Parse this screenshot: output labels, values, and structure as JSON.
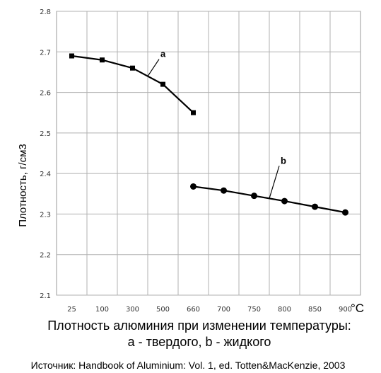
{
  "chart_data": {
    "type": "line",
    "categories": [
      "25",
      "100",
      "300",
      "500",
      "660",
      "700",
      "750",
      "800",
      "850",
      "900"
    ],
    "ylabel": "Плотность, г/см3",
    "x_unit": "°C",
    "ylim": [
      2.1,
      2.8
    ],
    "yticks": [
      "2.1",
      "2.2",
      "2.3",
      "2.4",
      "2.5",
      "2.6",
      "2.7",
      "2.8"
    ],
    "grid": true,
    "series": [
      {
        "name": "a",
        "marker": "square",
        "x": [
          "25",
          "100",
          "300",
          "500",
          "660"
        ],
        "values": [
          2.69,
          2.68,
          2.66,
          2.62,
          2.55
        ]
      },
      {
        "name": "b",
        "marker": "circle",
        "x": [
          "660",
          "700",
          "750",
          "800",
          "850",
          "900"
        ],
        "values": [
          2.368,
          2.358,
          2.345,
          2.332,
          2.318,
          2.304
        ]
      }
    ],
    "caption_line1": "Плотность алюминия при изменении температуры:",
    "caption_line2": "а - твердого, b - жидкого",
    "source": "Источник: Handbook of Aluminium: Vol. 1, ed. Totten&MacKenzie, 2003"
  }
}
